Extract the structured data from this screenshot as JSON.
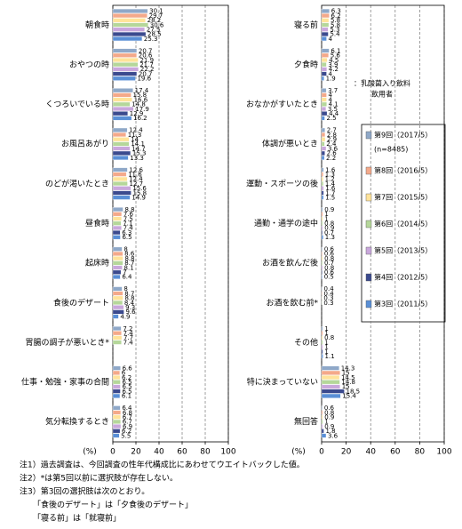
{
  "chart_data": [
    {
      "type": "hbar",
      "categories": [
        "朝食時",
        "おやつの時",
        "くつろいでいる時",
        "お風呂あがり",
        "のどが渇いたとき",
        "昼食時",
        "起床時",
        "食後のデザート",
        "胃腸の調子が悪いとき*",
        "仕事・勉強・家事の合間",
        "気分転換するとき"
      ],
      "series": [
        {
          "color": "#8fa8c8",
          "values": [
            30.1,
            20.7,
            17.4,
            12.4,
            12.6,
            8.8,
            8.0,
            8.0,
            7.2,
            6.6,
            6.4
          ]
        },
        {
          "color": "#f4a98a",
          "values": [
            29.7,
            20.6,
            15.8,
            11.3,
            11.6,
            7.6,
            8.6,
            8.7,
            7.4,
            6.0,
            6.8
          ]
        },
        {
          "color": "#ffe39a",
          "values": [
            28.2,
            21.9,
            16.6,
            14.0,
            12.4,
            7.5,
            8.8,
            8.8,
            7.7,
            6.2,
            6.7
          ]
        },
        {
          "color": "#b5d79a",
          "values": [
            30.6,
            21.7,
            14.8,
            14.1,
            12.7,
            7.1,
            8.7,
            8.4,
            7.4,
            6.5,
            6.7
          ]
        },
        {
          "color": "#c9a7dc",
          "values": [
            27.5,
            22.2,
            17.9,
            14.7,
            15.6,
            7.4,
            8.1,
            9.3,
            null,
            6.5,
            6.9
          ]
        },
        {
          "color": "#3b4a8e",
          "values": [
            28.5,
            20.7,
            12.9,
            15.3,
            15.8,
            6.3,
            7.0,
            9.6,
            null,
            6.5,
            6.2
          ]
        },
        {
          "color": "#5a8fd6",
          "values": [
            25.3,
            19.6,
            16.2,
            13.3,
            14.9,
            6.5,
            6.4,
            4.9,
            null,
            6.1,
            5.5
          ]
        }
      ],
      "xlim": [
        0,
        100
      ],
      "xticks": [
        0,
        20,
        40,
        60,
        80,
        100
      ],
      "x_label": "(%)",
      "grid": true
    },
    {
      "type": "hbar",
      "categories": [
        "寝る前",
        "夕食時",
        "おなかがすいたとき",
        "体調が悪いとき",
        "運動・スポーツの後",
        "通勤・通学の途中",
        "お酒を飲んだ後",
        "お酒を飲む前*",
        "その他",
        "特に決まっていない",
        "無回答"
      ],
      "series": [
        {
          "color": "#8fa8c8",
          "values": [
            6.3,
            6.1,
            3.7,
            2.7,
            1.6,
            0.9,
            0.6,
            0.4,
            1.0,
            14.3,
            0.6
          ]
        },
        {
          "color": "#f4a98a",
          "values": [
            6.2,
            5.6,
            4.0,
            2.8,
            1.3,
            1.0,
            0.6,
            0.4,
            1.0,
            15.0,
            0.8
          ]
        },
        {
          "color": "#ffe39a",
          "values": [
            5.8,
            4.5,
            4.0,
            2.9,
            1.2,
            1.0,
            0.8,
            0.3,
            0.8,
            14.5,
            0.9
          ]
        },
        {
          "color": "#b5d79a",
          "values": [
            5.8,
            3.9,
            4.1,
            2.4,
            1.4,
            0.8,
            0.7,
            0.3,
            1.0,
            14.8,
            1.0
          ]
        },
        {
          "color": "#c9a7dc",
          "values": [
            5.3,
            4.2,
            3.5,
            3.6,
            1.6,
            0.9,
            0.8,
            null,
            1.0,
            15.0,
            0.9
          ]
        },
        {
          "color": "#3b4a8e",
          "values": [
            5.4,
            4.0,
            4.4,
            2.6,
            1.7,
            0.7,
            0.6,
            null,
            1.0,
            18.5,
            1.8
          ]
        },
        {
          "color": "#5a8fd6",
          "values": [
            4.0,
            1.9,
            2.5,
            2.2,
            1.5,
            1.3,
            0.5,
            null,
            1.1,
            15.4,
            3.6
          ]
        }
      ],
      "xlim": [
        0,
        100
      ],
      "xticks": [
        0,
        20,
        40,
        60,
        80,
        100
      ],
      "x_label": "(%)",
      "grid": true
    }
  ],
  "legend": {
    "entries": [
      "第9回（2017/5）",
      "第8回（2016/5）",
      "第7回（2015/5）",
      "第6回（2014/5）",
      "第5回（2013/5）",
      "第4回（2012/5）",
      "第3回（2011/5）"
    ],
    "note": "(n=8485)"
  },
  "annotation": [
    "：乳酸菌入り飲料",
    "飲用者"
  ],
  "notes": [
    "注1）過去調査は、今回調査の性年代構成比にあわせてウエイトバックした値。",
    "注2）*は第5回以前に選択肢が存在しない。",
    "注3）第3回の選択肢は次のとおり。",
    "「食後のデザート」は「夕食後のデザート」",
    "「寝る前」は「就寝前」"
  ]
}
